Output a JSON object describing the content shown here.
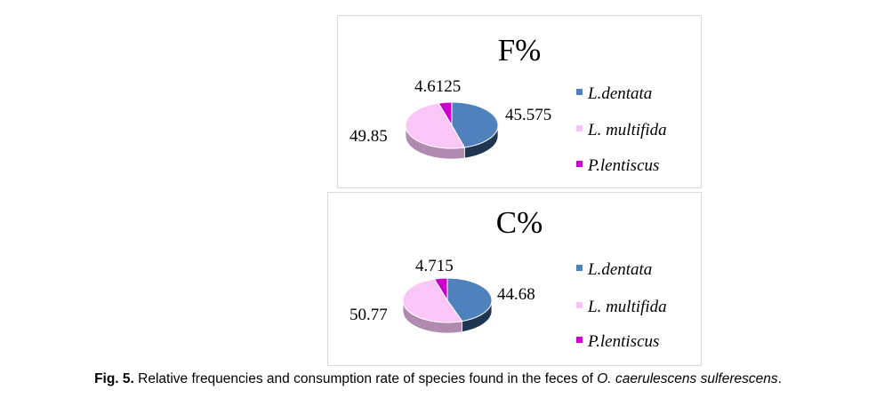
{
  "chart_data": [
    {
      "type": "pie",
      "title": "F%",
      "categories": [
        "L.dentata",
        "L. multifida",
        "P.lentiscus"
      ],
      "values": [
        45.575,
        49.85,
        4.6125
      ],
      "data_labels": [
        "45.575",
        "49.85",
        "4.6125"
      ],
      "colors": [
        "#4f81bd",
        "#f9c6f7",
        "#cc00cc"
      ],
      "side_colors": [
        "#1f3550",
        "#b08ab0",
        "#7a007a"
      ],
      "legend_position": "right",
      "style": "3d"
    },
    {
      "type": "pie",
      "title": "C%",
      "categories": [
        "L.dentata",
        "L. multifida",
        "P.lentiscus"
      ],
      "values": [
        44.68,
        50.77,
        4.715
      ],
      "data_labels": [
        "44.68",
        "50.77",
        "4.715"
      ],
      "colors": [
        "#4f81bd",
        "#f9c6f7",
        "#cc00cc"
      ],
      "side_colors": [
        "#1f3550",
        "#b08ab0",
        "#7a007a"
      ],
      "legend_position": "right",
      "style": "3d"
    }
  ],
  "caption": {
    "label": "Fig. 5.",
    "text": " Relative frequencies and consumption rate of species found in the feces of ",
    "species": "O. caerulescens sulferescens",
    "end": "."
  }
}
